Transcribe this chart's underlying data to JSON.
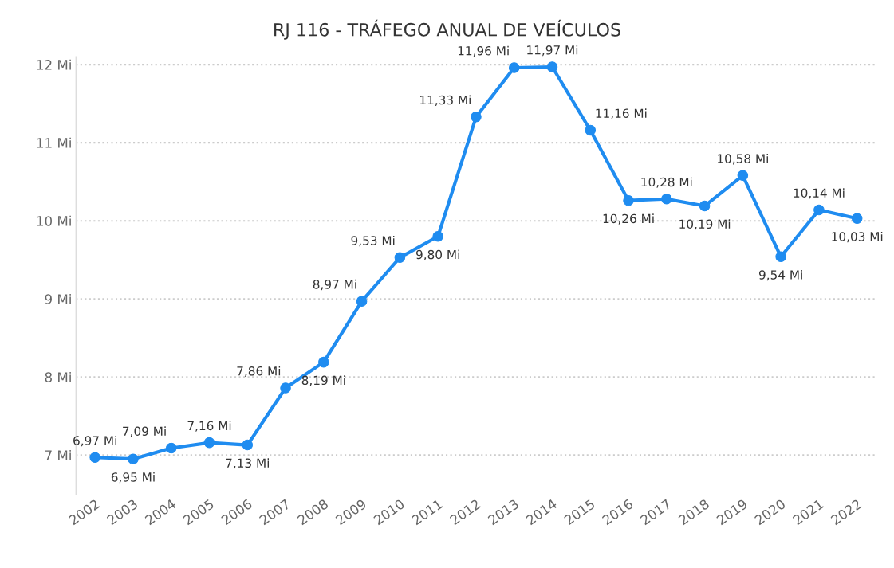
{
  "chart_data": {
    "type": "line",
    "title": "RJ 116 - TRÁFEGO ANUAL DE VEÍCULOS",
    "categories": [
      "2002",
      "2003",
      "2004",
      "2005",
      "2006",
      "2007",
      "2008",
      "2009",
      "2010",
      "2011",
      "2012",
      "2013",
      "2014",
      "2015",
      "2016",
      "2017",
      "2018",
      "2019",
      "2020",
      "2021",
      "2022"
    ],
    "series": [
      {
        "color": "#1f8cf0",
        "values": [
          6.97,
          6.95,
          7.09,
          7.16,
          7.13,
          7.86,
          8.19,
          8.97,
          9.53,
          9.8,
          11.33,
          11.96,
          11.97,
          11.16,
          10.26,
          10.28,
          10.19,
          10.58,
          9.54,
          10.14,
          10.03
        ],
        "value_labels": [
          "6,97 Mi",
          "6,95 Mi",
          "7,09 Mi",
          "7,16 Mi",
          "7,13 Mi",
          "7,86 Mi",
          "8,19 Mi",
          "8,97 Mi",
          "9,53 Mi",
          "9,80 Mi",
          "11,33 Mi",
          "11,96 Mi",
          "11,97 Mi",
          "11,16 Mi",
          "10,26 Mi",
          "10,28 Mi",
          "10,19 Mi",
          "10,58 Mi",
          "9,54 Mi",
          "10,14 Mi",
          "10,03 Mi"
        ]
      }
    ],
    "yticks": [
      {
        "value": 7,
        "label": "7 Mi"
      },
      {
        "value": 8,
        "label": "8 Mi"
      },
      {
        "value": 9,
        "label": "9 Mi"
      },
      {
        "value": 10,
        "label": "10 Mi"
      },
      {
        "value": 11,
        "label": "11 Mi"
      },
      {
        "value": 12,
        "label": "12 Mi"
      }
    ],
    "ylim": [
      6.5,
      12.1
    ],
    "grid": "y",
    "marker": "circle",
    "line_style": "solid",
    "legend": false
  }
}
